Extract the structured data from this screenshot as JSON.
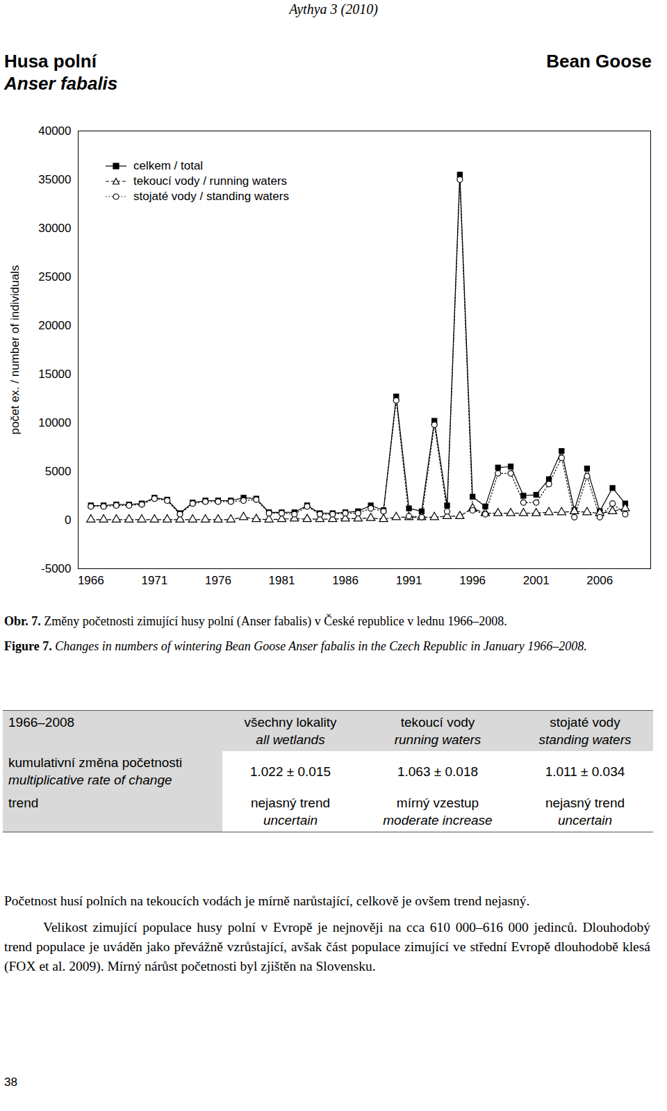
{
  "header": {
    "journal": "Aythya 3 (2010)",
    "title_cs": "Husa polní",
    "title_latin": "Anser fabalis",
    "title_en": "Bean Goose"
  },
  "chart_data": {
    "type": "line",
    "y_label": "počet ex. / number of individuals",
    "x": [
      1966,
      1967,
      1968,
      1969,
      1970,
      1971,
      1972,
      1973,
      1974,
      1975,
      1976,
      1977,
      1978,
      1979,
      1980,
      1981,
      1982,
      1983,
      1984,
      1985,
      1986,
      1987,
      1988,
      1989,
      1990,
      1991,
      1992,
      1993,
      1994,
      1995,
      1996,
      1997,
      1998,
      1999,
      2000,
      2001,
      2002,
      2003,
      2004,
      2005,
      2006,
      2007,
      2008
    ],
    "series": [
      {
        "name": "celkem / total",
        "color": "#000000",
        "marker": "square-filled",
        "line_style": "solid",
        "values": [
          1500,
          1500,
          1600,
          1600,
          1700,
          2300,
          2100,
          700,
          1800,
          2000,
          2000,
          2000,
          2300,
          2200,
          800,
          800,
          800,
          1500,
          700,
          700,
          800,
          900,
          1500,
          1000,
          12700,
          1200,
          900,
          10200,
          1500,
          35500,
          2400,
          1400,
          5400,
          5500,
          2500,
          2600,
          4200,
          7100,
          1000,
          5300,
          900,
          3300,
          1700
        ]
      },
      {
        "name": "tekoucí vody / running waters",
        "color": "#000000",
        "marker": "triangle-open",
        "line_style": "dashed",
        "values": [
          50,
          50,
          50,
          50,
          50,
          50,
          50,
          50,
          50,
          50,
          50,
          50,
          300,
          100,
          50,
          100,
          150,
          100,
          100,
          100,
          150,
          150,
          200,
          100,
          300,
          300,
          300,
          300,
          400,
          400,
          1200,
          700,
          700,
          700,
          700,
          700,
          800,
          800,
          900,
          800,
          700,
          900,
          1200
        ]
      },
      {
        "name": "stojaté vody / standing waters",
        "color": "#000000",
        "marker": "circle-open",
        "line_style": "dotted",
        "values": [
          1400,
          1400,
          1500,
          1500,
          1600,
          2200,
          2000,
          600,
          1700,
          1900,
          1900,
          1900,
          2000,
          2100,
          700,
          700,
          600,
          1400,
          600,
          600,
          700,
          700,
          1200,
          900,
          12300,
          400,
          300,
          9800,
          900,
          35000,
          1000,
          600,
          4800,
          4800,
          1800,
          1800,
          3700,
          6400,
          300,
          4500,
          300,
          1700,
          600
        ]
      }
    ],
    "xlim": [
      1965,
      2010
    ],
    "xticks": [
      1966,
      1971,
      1976,
      1981,
      1986,
      1991,
      1996,
      2001,
      2006
    ],
    "ylim": [
      -5000,
      40000
    ],
    "yticks": [
      -5000,
      0,
      5000,
      10000,
      15000,
      20000,
      25000,
      30000,
      35000,
      40000
    ],
    "grid": false,
    "legend": "top-left"
  },
  "caption": {
    "cs": {
      "label": "Obr. 7.",
      "text": "Změny početnosti zimující husy polní (Anser fabalis) v České republice v lednu 1966–2008."
    },
    "en": {
      "label": "Figure 7.",
      "text": "Changes in numbers of wintering Bean Goose Anser fabalis in the Czech Republic in January 1966–2008."
    }
  },
  "table": {
    "corner": "1966–2008",
    "columns": [
      {
        "cs": "všechny lokality",
        "en": "all wetlands"
      },
      {
        "cs": "tekoucí vody",
        "en": "running waters"
      },
      {
        "cs": "stojaté vody",
        "en": "standing waters"
      }
    ],
    "rows": [
      {
        "cs": "kumulativní změna početnosti",
        "en": "multiplicative rate of change",
        "cells": [
          {
            "cs": "1.022 ± 0.015"
          },
          {
            "cs": "1.063 ± 0.018"
          },
          {
            "cs": "1.011 ± 0.034"
          }
        ]
      },
      {
        "cs": "trend",
        "cells": [
          {
            "cs": "nejasný trend",
            "en": "uncertain"
          },
          {
            "cs": "mírný vzestup",
            "en": "moderate increase"
          },
          {
            "cs": "nejasný trend",
            "en": "uncertain"
          }
        ]
      }
    ]
  },
  "paragraphs": [
    "Početnost husí polních na tekoucích vodách je mírně narůstající, celkově je ovšem trend nejasný.",
    "Velikost zimující populace husy polní v Evropě je nejnověji na cca 610 000–616 000 jedinců. Dlouhodobý trend populace je uváděn jako převážně vzrůstající, avšak část populace zimující ve střední Evropě dlouhodobě klesá (FOX et al. 2009). Mírný nárůst početnosti byl zjištěn na Slovensku."
  ],
  "page_number": "38"
}
